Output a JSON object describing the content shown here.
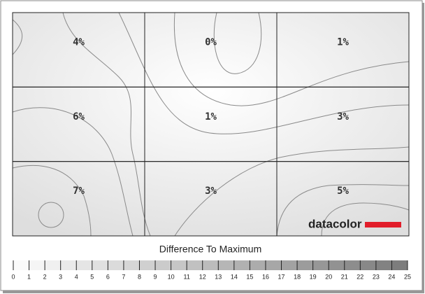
{
  "chart_data": {
    "type": "uniformity",
    "title": "Difference To Maximum",
    "values": [
      [
        4,
        0,
        1
      ],
      [
        6,
        1,
        3
      ],
      [
        7,
        3,
        5
      ]
    ],
    "value_labels": [
      [
        "4%",
        "0%",
        "1%"
      ],
      [
        "6%",
        "1%",
        "3%"
      ],
      [
        "7%",
        "3%",
        "5%"
      ]
    ],
    "xlim": [
      0,
      25
    ],
    "xticks": [
      0,
      1,
      2,
      3,
      4,
      5,
      6,
      7,
      8,
      9,
      10,
      11,
      12,
      13,
      14,
      15,
      16,
      17,
      18,
      19,
      20,
      21,
      22,
      23,
      24,
      25
    ],
    "logo": "datacolor"
  }
}
